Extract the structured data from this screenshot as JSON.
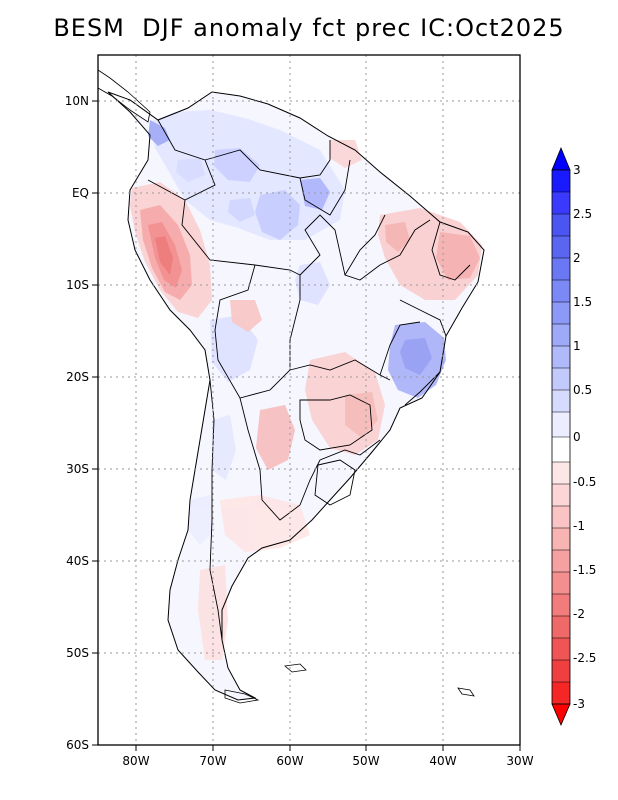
{
  "title": "BESM  DJF anomaly fct prec IC:Oct2025",
  "map": {
    "lat_labels": [
      "10N",
      "EQ",
      "10S",
      "20S",
      "30S",
      "40S",
      "50S",
      "60S"
    ],
    "lon_labels": [
      "80W",
      "70W",
      "60W",
      "50W",
      "40W",
      "30W"
    ],
    "lat_range": [
      -60,
      15
    ],
    "lon_range": [
      -85,
      -30
    ],
    "variable": "precipitation anomaly forecast",
    "season": "DJF"
  },
  "colorbar": {
    "labels": [
      "3",
      "2.5",
      "2",
      "1.5",
      "1",
      "0.5",
      "0",
      "-0.5",
      "-1",
      "-1.5",
      "-2",
      "-2.5",
      "-3"
    ],
    "colors": {
      "strong_positive": "#0000ff",
      "weak_positive": "#c8d0ff",
      "neutral": "#ffffff",
      "weak_negative": "#ffd0d0",
      "strong_negative": "#ff0000"
    }
  }
}
